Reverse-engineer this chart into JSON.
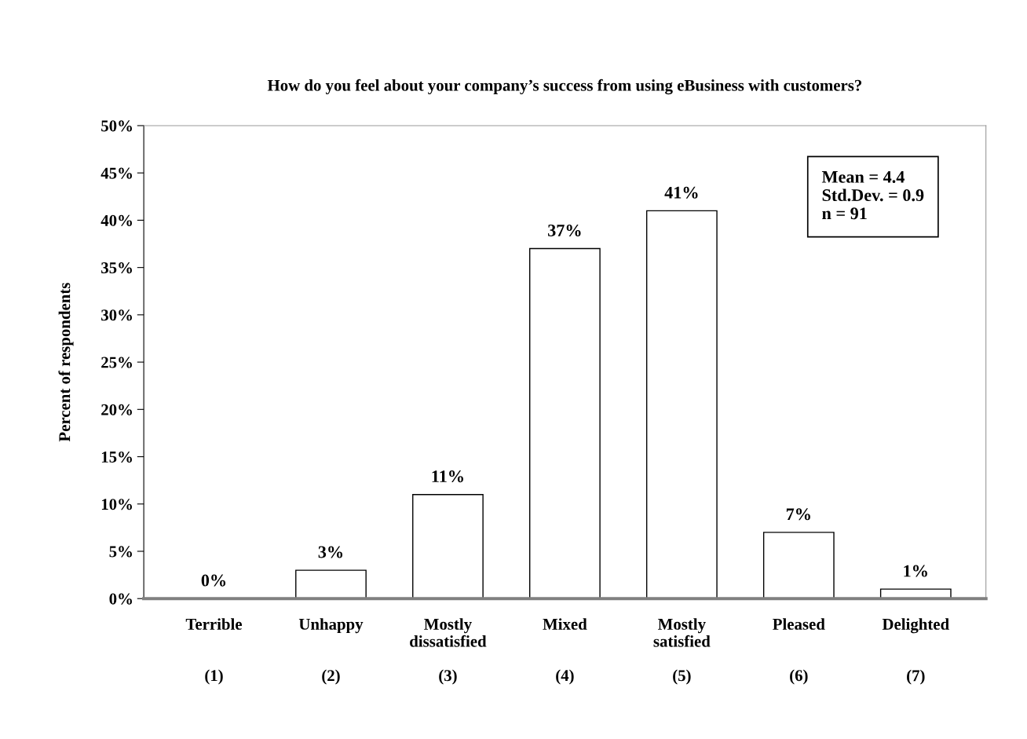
{
  "chart_data": {
    "type": "bar",
    "title": "How do you feel about your company’s success from using eBusiness with customers?",
    "ylabel": "Percent of respondents",
    "categories": [
      "Terrible\n\n\n(1)",
      "Unhappy\n\n\n(2)",
      "Mostly\ndissatisfied\n\n(3)",
      "Mixed\n\n\n(4)",
      "Mostly\nsatisfied\n\n(5)",
      "Pleased\n\n\n(6)",
      "Delighted\n\n\n(7)"
    ],
    "values": [
      0,
      3,
      11,
      37,
      41,
      7,
      1
    ],
    "value_labels": [
      "0%",
      "3%",
      "11%",
      "37%",
      "41%",
      "7%",
      "1%"
    ],
    "color": "#ffffff",
    "ylim": [
      0,
      50
    ],
    "yticks": [
      {
        "value": 0,
        "label": "0%"
      },
      {
        "value": 5,
        "label": "5%"
      },
      {
        "value": 10,
        "label": "10%"
      },
      {
        "value": 15,
        "label": "15%"
      },
      {
        "value": 20,
        "label": "20%"
      },
      {
        "value": 25,
        "label": "25%"
      },
      {
        "value": 30,
        "label": "30%"
      },
      {
        "value": 35,
        "label": "35%"
      },
      {
        "value": 40,
        "label": "40%"
      },
      {
        "value": 45,
        "label": "45%"
      },
      {
        "value": 50,
        "label": "50%"
      }
    ],
    "annotations": [
      "Mean = 4.4\nStd.Dev. = 0.9\nn = 91"
    ],
    "grid": false,
    "legend": false
  }
}
